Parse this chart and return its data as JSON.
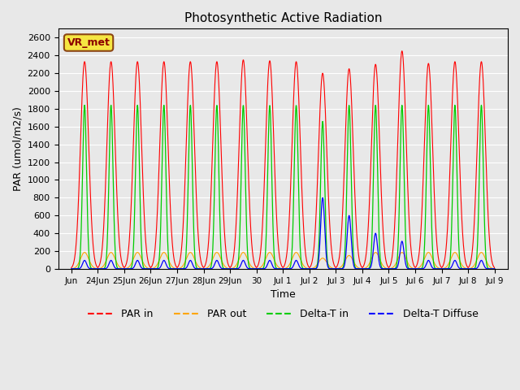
{
  "title": "Photosynthetic Active Radiation",
  "ylabel": "PAR (umol/m2/s)",
  "xlabel": "Time",
  "ylim": [
    0,
    2700
  ],
  "yticks": [
    0,
    200,
    400,
    600,
    800,
    1000,
    1200,
    1400,
    1600,
    1800,
    2000,
    2200,
    2400,
    2600
  ],
  "background_color": "#e8e8e8",
  "axes_bg_color": "#e8e8e8",
  "grid_color": "#ffffff",
  "annotation_text": "VR_met",
  "annotation_color": "#8B0000",
  "annotation_bg": "#f5e642",
  "colors": {
    "PAR_in": "#ff0000",
    "PAR_out": "#ffa500",
    "Delta_T_in": "#00cc00",
    "Delta_T_Diffuse": "#0000ff"
  },
  "legend_labels": [
    "PAR in",
    "PAR out",
    "Delta-T in",
    "Delta-T Diffuse"
  ],
  "n_days": 16,
  "x_tick_positions": [
    0,
    1,
    2,
    3,
    4,
    5,
    6,
    7,
    8,
    9,
    10,
    11,
    12,
    13,
    14,
    15,
    16
  ],
  "x_tick_labels": [
    "Jun",
    "24Jun",
    "25Jun",
    "26Jun",
    "27Jun",
    "28Jun",
    "29Jun",
    "30",
    "Jul 1",
    "Jul 2",
    "Jul 3",
    "Jul 4",
    "Jul 5",
    "Jul 6",
    "Jul 7",
    "Jul 8",
    "Jul 9"
  ],
  "par_in_peaks": [
    2330,
    2330,
    2330,
    2330,
    2330,
    2330,
    2350,
    2340,
    2330,
    2200,
    2250,
    2300,
    2450,
    2310,
    2330,
    2330
  ],
  "par_out_peaks": [
    185,
    185,
    185,
    185,
    185,
    185,
    185,
    185,
    185,
    120,
    150,
    185,
    185,
    185,
    185,
    185
  ],
  "delta_t_in_peaks": [
    1840,
    1840,
    1840,
    1840,
    1840,
    1840,
    1840,
    1840,
    1840,
    1660,
    1840,
    1840,
    1840,
    1840,
    1840,
    1840
  ],
  "delta_t_diff_peaks": [
    95,
    95,
    95,
    95,
    95,
    95,
    95,
    95,
    95,
    800,
    600,
    400,
    310,
    95,
    95,
    95
  ],
  "sigma_wide": 0.155,
  "sigma_narrow": 0.075
}
